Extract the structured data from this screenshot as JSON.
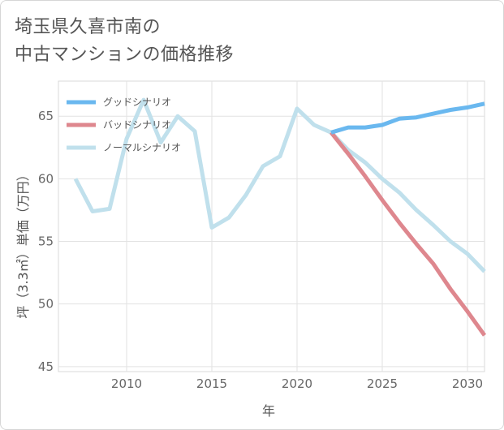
{
  "title": {
    "line1": "埼玉県久喜市南の",
    "line2": "中古マンションの価格推移"
  },
  "chart_data": {
    "type": "line",
    "xlabel": "年",
    "ylabel": "坪（3.3㎡）単価（万円）",
    "xlim": [
      2006,
      2031
    ],
    "ylim": [
      44.6,
      67.8
    ],
    "xticks": [
      2010,
      2015,
      2020,
      2025,
      2030
    ],
    "yticks": [
      45,
      50,
      55,
      60,
      65
    ],
    "grid": true,
    "legend_position": "top-left",
    "series": [
      {
        "name": "グッドシナリオ",
        "color": "#6ab8ef",
        "points": [
          [
            2022,
            63.7
          ],
          [
            2023,
            64.1
          ],
          [
            2024,
            64.1
          ],
          [
            2025,
            64.3
          ],
          [
            2026,
            64.8
          ],
          [
            2027,
            64.9
          ],
          [
            2028,
            65.2
          ],
          [
            2029,
            65.5
          ],
          [
            2030,
            65.7
          ],
          [
            2031,
            66.0
          ]
        ]
      },
      {
        "name": "バッドシナリオ",
        "color": "#de878e",
        "points": [
          [
            2022,
            63.7
          ],
          [
            2023,
            62.0
          ],
          [
            2024,
            60.2
          ],
          [
            2025,
            58.3
          ],
          [
            2026,
            56.5
          ],
          [
            2027,
            54.8
          ],
          [
            2028,
            53.2
          ],
          [
            2029,
            51.2
          ],
          [
            2030,
            49.4
          ],
          [
            2031,
            47.5
          ]
        ]
      },
      {
        "name": "ノーマルシナリオ",
        "color": "#c0e0ec",
        "points": [
          [
            2007,
            60.0
          ],
          [
            2008,
            57.4
          ],
          [
            2009,
            57.6
          ],
          [
            2010,
            63.2
          ],
          [
            2011,
            66.3
          ],
          [
            2012,
            62.9
          ],
          [
            2013,
            65.0
          ],
          [
            2014,
            63.8
          ],
          [
            2015,
            56.1
          ],
          [
            2016,
            56.9
          ],
          [
            2017,
            58.7
          ],
          [
            2018,
            61.0
          ],
          [
            2019,
            61.8
          ],
          [
            2020,
            65.6
          ],
          [
            2021,
            64.3
          ],
          [
            2022,
            63.7
          ],
          [
            2023,
            62.3
          ],
          [
            2024,
            61.3
          ],
          [
            2025,
            60.0
          ],
          [
            2026,
            58.9
          ],
          [
            2027,
            57.5
          ],
          [
            2028,
            56.3
          ],
          [
            2029,
            55.0
          ],
          [
            2030,
            54.0
          ],
          [
            2031,
            52.6
          ]
        ]
      }
    ]
  }
}
